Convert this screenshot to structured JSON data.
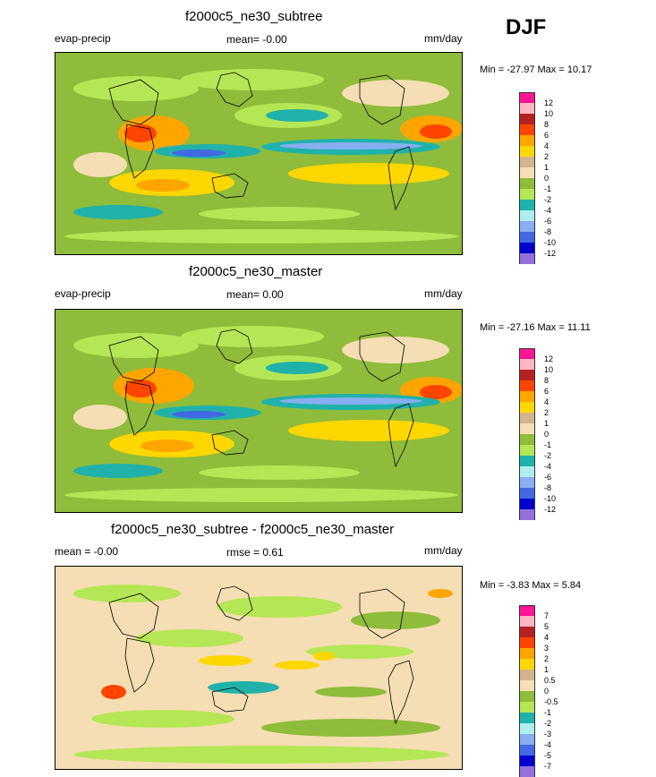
{
  "season": "DJF",
  "panels": [
    {
      "title": "f2000c5_ne30_subtree",
      "left_label": "evap-precip",
      "center_label": "mean=  -0.00",
      "right_label": "mm/day",
      "minmax": "Min = -27.97 Max =  10.17",
      "colorbar": {
        "labels": [
          "12",
          "10",
          "8",
          "6",
          "4",
          "2",
          "1",
          "0",
          "-1",
          "-2",
          "-4",
          "-6",
          "-8",
          "-10",
          "-12"
        ],
        "colors": [
          "#ff1493",
          "#ffb6c1",
          "#b22222",
          "#ff4500",
          "#ffa500",
          "#ffd700",
          "#d2b48c",
          "#f5deb3",
          "#8fbc3a",
          "#b5e655",
          "#20b2aa",
          "#afeeee",
          "#87aef0",
          "#4169e1",
          "#0000cd",
          "#9370db"
        ]
      }
    },
    {
      "title": "f2000c5_ne30_master",
      "left_label": "evap-precip",
      "center_label": "mean=   0.00",
      "right_label": "mm/day",
      "minmax": "Min = -27.16 Max =  11.11",
      "colorbar": {
        "labels": [
          "12",
          "10",
          "8",
          "6",
          "4",
          "2",
          "1",
          "0",
          "-1",
          "-2",
          "-4",
          "-6",
          "-8",
          "-10",
          "-12"
        ],
        "colors": [
          "#ff1493",
          "#ffb6c1",
          "#b22222",
          "#ff4500",
          "#ffa500",
          "#ffd700",
          "#d2b48c",
          "#f5deb3",
          "#8fbc3a",
          "#b5e655",
          "#20b2aa",
          "#afeeee",
          "#87aef0",
          "#4169e1",
          "#0000cd",
          "#9370db"
        ]
      }
    },
    {
      "title": "f2000c5_ne30_subtree - f2000c5_ne30_master",
      "left_label": "mean =  -0.00",
      "center_label": "rmse =   0.61",
      "right_label": "mm/day",
      "minmax": "Min =  -3.83 Max =   5.84",
      "colorbar": {
        "labels": [
          "7",
          "5",
          "4",
          "3",
          "2",
          "1",
          "0.5",
          "0",
          "-0.5",
          "-1",
          "-2",
          "-3",
          "-4",
          "-5",
          "-7"
        ],
        "colors": [
          "#ff1493",
          "#ffb6c1",
          "#b22222",
          "#ff4500",
          "#ffa500",
          "#ffd700",
          "#d2b48c",
          "#f5deb3",
          "#8fbc3a",
          "#b5e655",
          "#20b2aa",
          "#afeeee",
          "#87aef0",
          "#4169e1",
          "#0000cd",
          "#9370db"
        ]
      }
    }
  ]
}
